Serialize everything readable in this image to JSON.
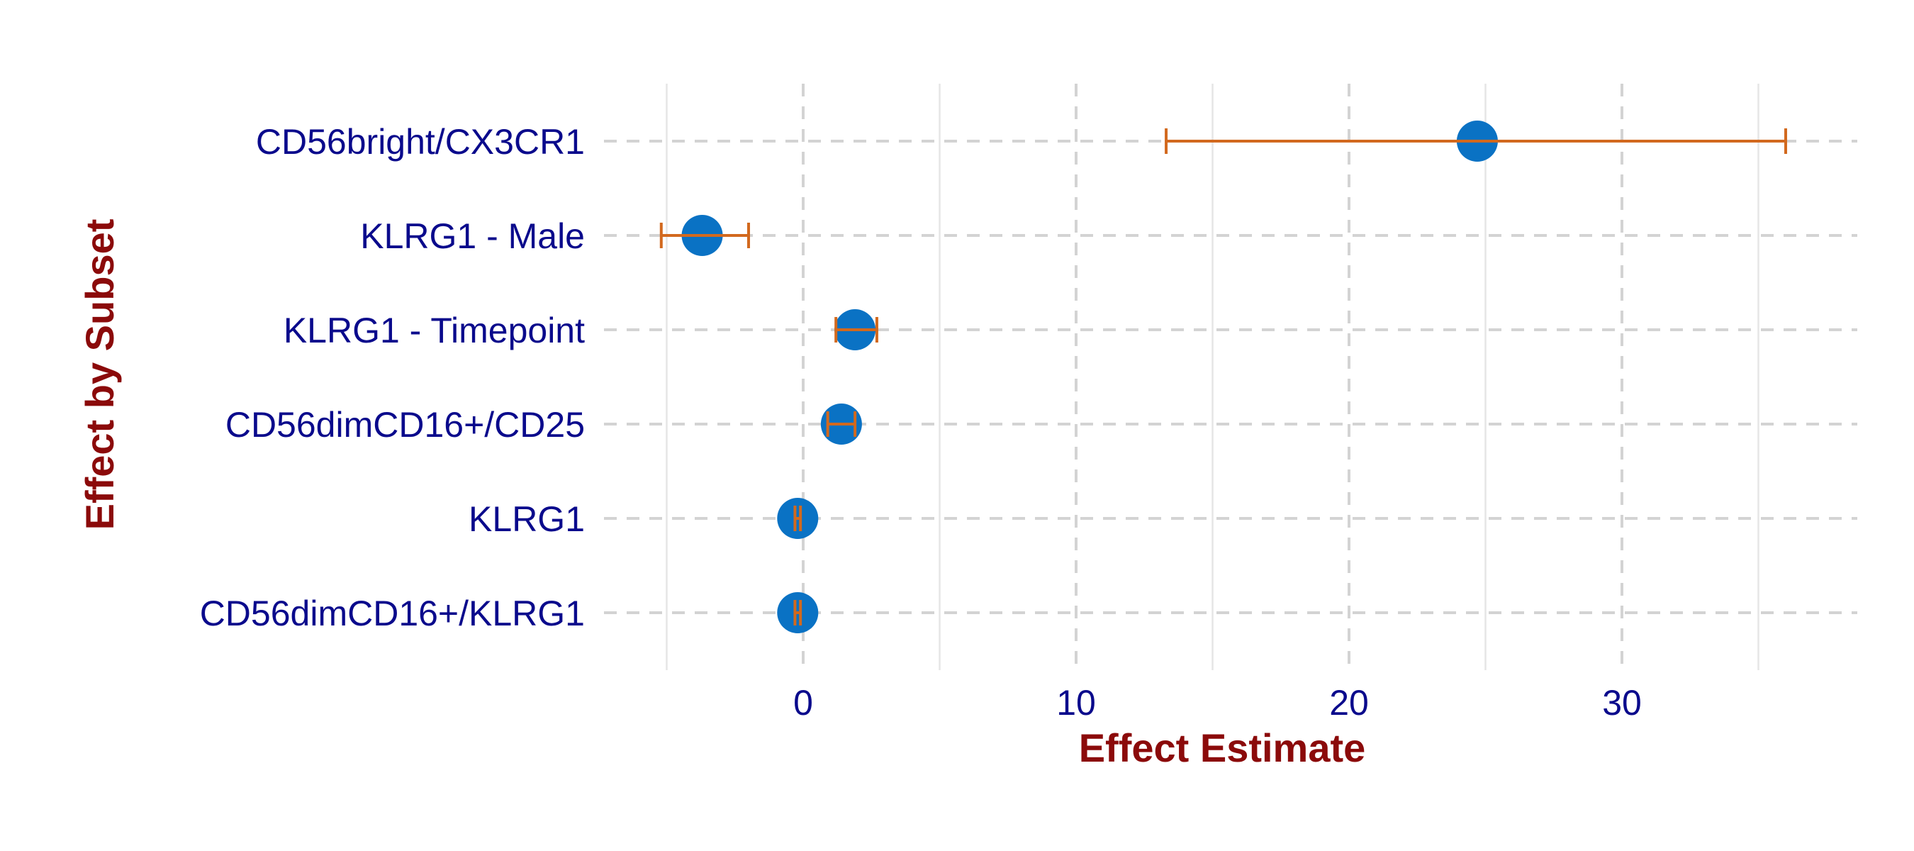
{
  "chart_data": {
    "type": "scatter",
    "subtype": "forest-plot",
    "xlabel": "Effect Estimate",
    "ylabel": "Effect by Subset",
    "xlim": [
      -5.2,
      38
    ],
    "x_ticks": [
      0,
      10,
      20,
      30
    ],
    "grid": "dashed major lines, solid minor vertical lines",
    "colors": {
      "point": "#0a72c4",
      "error_bar": "#d2691e",
      "grid": "#d3d3d3",
      "tick_label": "#0a0a8c",
      "axis_title": "#8b0a0a"
    },
    "categories": [
      "CD56bright/CX3CR1",
      "KLRG1 - Male",
      "KLRG1 - Timepoint",
      "CD56dimCD16+/CD25",
      "KLRG1",
      "CD56dimCD16+/KLRG1"
    ],
    "series": [
      {
        "estimate": [
          24.7,
          -3.7,
          1.9,
          1.4,
          -0.2,
          -0.2
        ],
        "lower": [
          13.3,
          -5.2,
          1.2,
          0.9,
          -0.3,
          -0.3
        ],
        "upper": [
          36.0,
          -2.0,
          2.7,
          1.9,
          -0.1,
          -0.1
        ]
      }
    ]
  }
}
